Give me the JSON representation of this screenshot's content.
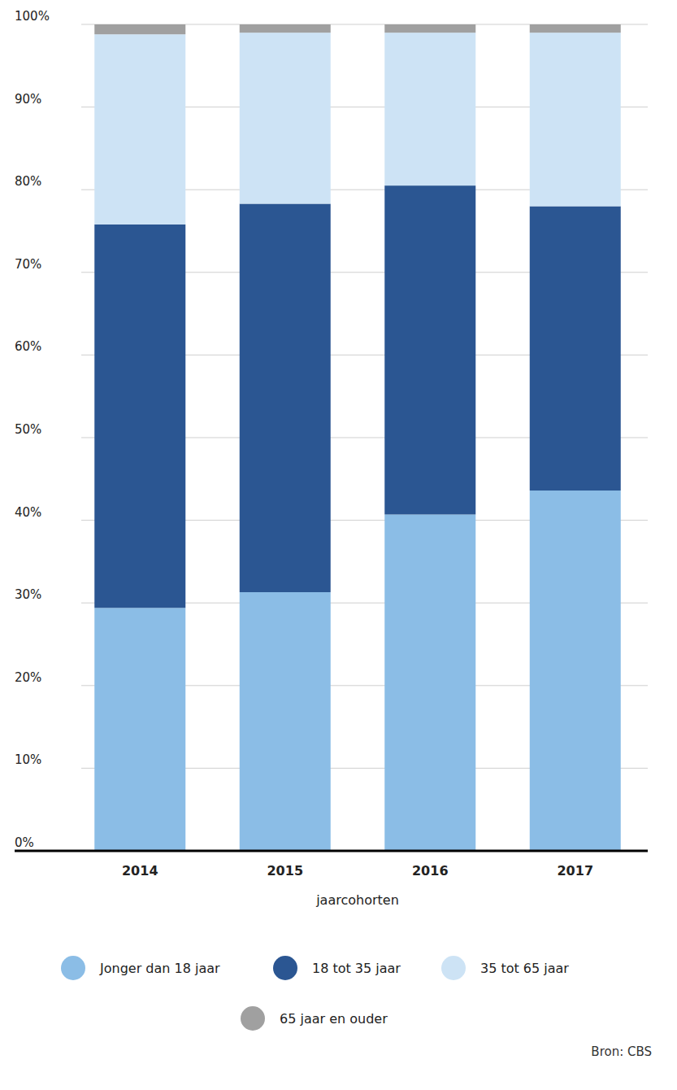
{
  "chart_data": {
    "type": "bar",
    "stacked": true,
    "grid": true,
    "x_label": "jaarcohorten",
    "source": "Bron: CBS",
    "categories": [
      "2014",
      "2015",
      "2016",
      "2017"
    ],
    "series": [
      {
        "name": "Jonger dan 18 jaar",
        "color": "#8bbde6",
        "values": [
          29.4,
          31.3,
          40.7,
          43.6
        ]
      },
      {
        "name": "18 tot 35 jaar",
        "color": "#2b5692",
        "values": [
          46.4,
          47.0,
          39.8,
          34.4
        ]
      },
      {
        "name": "35 tot 65 jaar",
        "color": "#cde3f5",
        "values": [
          23.0,
          20.7,
          18.5,
          21.0
        ]
      },
      {
        "name": "65 jaar en ouder",
        "color": "#a0a0a0",
        "values": [
          1.2,
          1.0,
          1.0,
          1.0
        ]
      }
    ],
    "ylim": [
      0,
      100
    ],
    "yticks": [
      {
        "value": 0,
        "label": "0%"
      },
      {
        "value": 10,
        "label": "10%"
      },
      {
        "value": 20,
        "label": "20%"
      },
      {
        "value": 30,
        "label": "30%"
      },
      {
        "value": 40,
        "label": "40%"
      },
      {
        "value": 50,
        "label": "50%"
      },
      {
        "value": 60,
        "label": "60%"
      },
      {
        "value": 70,
        "label": "70%"
      },
      {
        "value": 80,
        "label": "80%"
      },
      {
        "value": 90,
        "label": "90%"
      },
      {
        "value": 100,
        "label": "100%"
      }
    ]
  }
}
